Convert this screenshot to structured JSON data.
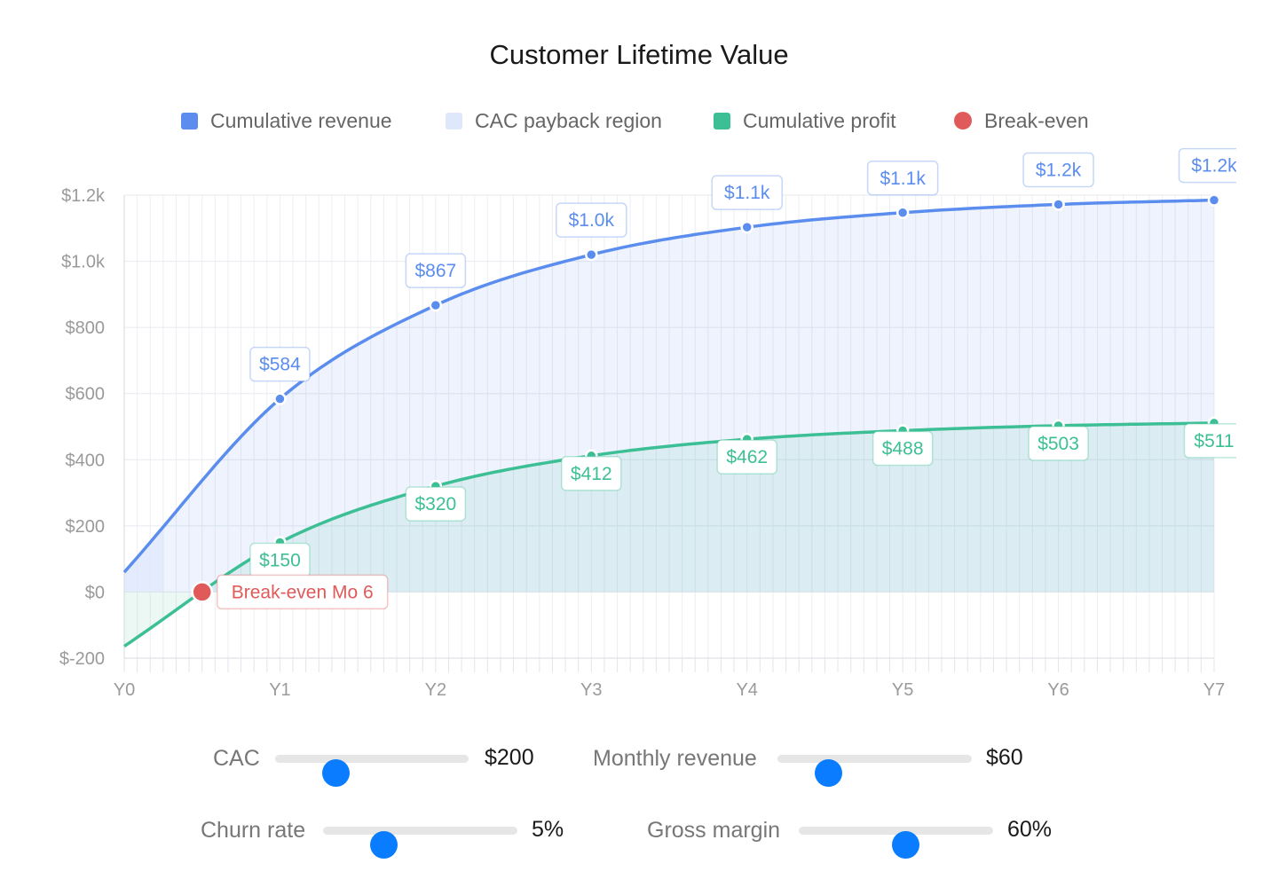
{
  "title": "Customer Lifetime Value",
  "legend": [
    {
      "label": "Cumulative revenue",
      "color": "#5b8def",
      "shape": "square"
    },
    {
      "label": "CAC payback region",
      "color": "#dfe8fb",
      "shape": "square"
    },
    {
      "label": "Cumulative profit",
      "color": "#3dbf95",
      "shape": "square"
    },
    {
      "label": "Break-even",
      "color": "#e05a5a",
      "shape": "circle"
    }
  ],
  "chart_data": {
    "type": "line",
    "categories": [
      "Y0",
      "Y1",
      "Y2",
      "Y3",
      "Y4",
      "Y5",
      "Y6",
      "Y7"
    ],
    "x_range": [
      0,
      84
    ],
    "ylim": [
      -200,
      1200
    ],
    "y_ticks": [
      {
        "value": -200,
        "label": "$-200"
      },
      {
        "value": 0,
        "label": "$0"
      },
      {
        "value": 200,
        "label": "$200"
      },
      {
        "value": 400,
        "label": "$400"
      },
      {
        "value": 600,
        "label": "$600"
      },
      {
        "value": 800,
        "label": "$800"
      },
      {
        "value": 1000,
        "label": "$1.0k"
      },
      {
        "value": 1200,
        "label": "$1.2k"
      }
    ],
    "grid": true,
    "legend_position": "top",
    "series": [
      {
        "name": "Cumulative revenue",
        "color": "#5b8def",
        "points": [
          [
            0,
            60
          ],
          [
            12,
            584
          ],
          [
            24,
            867
          ],
          [
            36,
            1020
          ],
          [
            48,
            1103
          ],
          [
            60,
            1147
          ],
          [
            72,
            1172
          ],
          [
            84,
            1185
          ]
        ],
        "labels": [
          "$584",
          "$867",
          "$1.0k",
          "$1.1k",
          "$1.1k",
          "$1.2k",
          "$1.2k"
        ]
      },
      {
        "name": "Cumulative profit",
        "color": "#3dbf95",
        "points": [
          [
            0,
            -164
          ],
          [
            12,
            150
          ],
          [
            24,
            320
          ],
          [
            36,
            412
          ],
          [
            48,
            462
          ],
          [
            60,
            488
          ],
          [
            72,
            503
          ],
          [
            84,
            511
          ]
        ],
        "labels": [
          "$150",
          "$320",
          "$412",
          "$462",
          "$488",
          "$503",
          "$511"
        ]
      }
    ],
    "cac_payback_region": {
      "x_start": 0,
      "x_end": 3,
      "color": "#dfe8fb"
    },
    "break_even": {
      "month": 6,
      "value": 0,
      "label": "Break-even Mo 6",
      "color": "#e05a5a"
    }
  },
  "controls": [
    {
      "label": "CAC",
      "value": "$200",
      "fraction": 0.31
    },
    {
      "label": "Monthly revenue",
      "value": "$60",
      "fraction": 0.26
    },
    {
      "label": "Churn rate",
      "value": "5%",
      "fraction": 0.31
    },
    {
      "label": "Gross margin",
      "value": "60%",
      "fraction": 0.55
    }
  ]
}
